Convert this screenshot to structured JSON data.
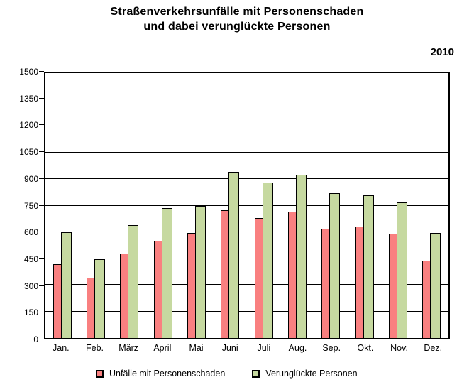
{
  "title": {
    "line1": "Straßenverkehrsunfälle mit Personenschaden",
    "line2": "und dabei verunglückte Personen"
  },
  "year": "2010",
  "colors": {
    "accidents_bar": "#f98080",
    "casualties_bar": "#c6d9a0",
    "bar_border": "#000000",
    "grid": "#000000",
    "background": "#ffffff"
  },
  "chart_data": {
    "type": "bar",
    "title": "Straßenverkehrsunfälle mit Personenschaden und dabei verunglückte Personen",
    "subtitle": "2010",
    "categories": [
      "Jan.",
      "Feb.",
      "März",
      "April",
      "Mai",
      "Juni",
      "Juli",
      "Aug.",
      "Sep.",
      "Okt.",
      "Nov.",
      "Dez."
    ],
    "series": [
      {
        "name": "Unfälle mit Personenschaden",
        "color": "#f98080",
        "values": [
          420,
          340,
          480,
          550,
          595,
          725,
          680,
          715,
          620,
          630,
          590,
          440
        ]
      },
      {
        "name": "Verunglückte Personen",
        "color": "#c6d9a0",
        "values": [
          600,
          445,
          640,
          735,
          750,
          940,
          880,
          925,
          820,
          810,
          770,
          595
        ]
      }
    ],
    "xlabel": "",
    "ylabel": "",
    "ylim": [
      0,
      1500
    ],
    "yticks": [
      0,
      150,
      300,
      450,
      600,
      750,
      900,
      1050,
      1200,
      1350,
      1500
    ],
    "grid": true,
    "legend_position": "bottom"
  }
}
